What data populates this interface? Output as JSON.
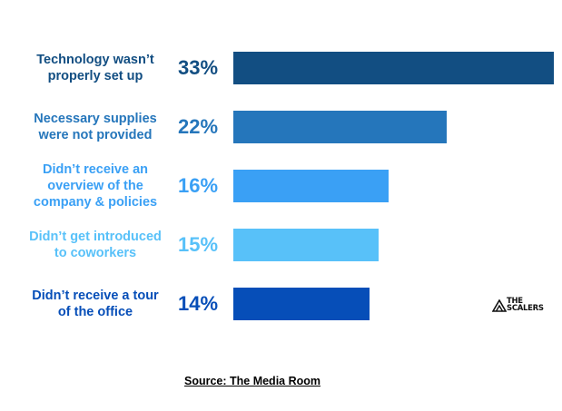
{
  "chart_data": {
    "type": "bar",
    "orientation": "horizontal",
    "title": "",
    "xlabel": "",
    "ylabel": "",
    "xlim": [
      0,
      33
    ],
    "categories": [
      "Technology wasn’t\nproperly set up",
      "Necessary supplies\nwere not provided",
      "Didn’t receive an\noverview of the\ncompany & policies",
      "Didn’t get introduced\nto coworkers",
      "Didn’t receive a tour\nof the office"
    ],
    "values": [
      33,
      22,
      16,
      15,
      14
    ],
    "value_labels": [
      "33%",
      "22%",
      "16%",
      "15%",
      "14%"
    ],
    "colors": [
      "#124E82",
      "#2576BB",
      "#3AA0F5",
      "#58C1F9",
      "#064EB8"
    ]
  },
  "source": "Source: The Media Room",
  "logo": {
    "text_line1": "THE",
    "text_line2": "SCALERS",
    "icon": "scalers-logo-icon"
  }
}
